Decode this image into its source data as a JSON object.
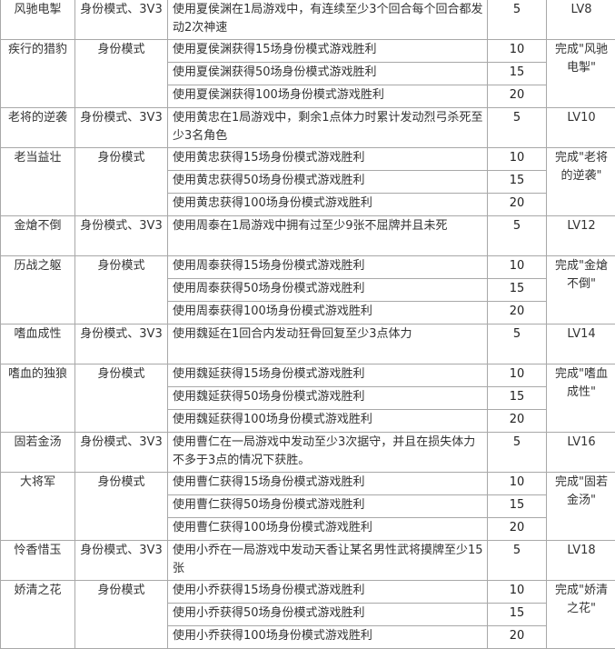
{
  "achievements": [
    {
      "name": "风驰电掣",
      "mode": "身份模式、3V3",
      "tasks": [
        {
          "text": "使用夏侯渊在1局游戏中，有连续至少3个回合每个回合都发动2次神速",
          "points": "5"
        }
      ],
      "requirement": "LV8"
    },
    {
      "name": "疾行的猎豹",
      "mode": "身份模式",
      "tasks": [
        {
          "text": "使用夏侯渊获得15场身份模式游戏胜利",
          "points": "10"
        },
        {
          "text": "使用夏侯渊获得50场身份模式游戏胜利",
          "points": "15"
        },
        {
          "text": "使用夏侯渊获得100场身份模式游戏胜利",
          "points": "20"
        }
      ],
      "requirement": "完成\"风驰电掣\""
    },
    {
      "name": "老将的逆袭",
      "mode": "身份模式、3V3",
      "tasks": [
        {
          "text": "使用黄忠在1局游戏中，剩余1点体力时累计发动烈弓杀死至少3名角色",
          "points": "5"
        }
      ],
      "requirement": "LV10"
    },
    {
      "name": "老当益壮",
      "mode": "身份模式",
      "tasks": [
        {
          "text": "使用黄忠获得15场身份模式游戏胜利",
          "points": "10"
        },
        {
          "text": "使用黄忠获得50场身份模式游戏胜利",
          "points": "15"
        },
        {
          "text": "使用黄忠获得100场身份模式游戏胜利",
          "points": "20"
        }
      ],
      "requirement": "完成\"老将的逆袭\""
    },
    {
      "name": "金熗不倒",
      "mode": "身份模式、3V3",
      "tasks": [
        {
          "text": "使用周泰在1局游戏中拥有过至少9张不屈牌并且未死",
          "points": "5"
        }
      ],
      "requirement": "LV12"
    },
    {
      "name": "历战之躯",
      "mode": "身份模式",
      "tasks": [
        {
          "text": "使用周泰获得15场身份模式游戏胜利",
          "points": "10"
        },
        {
          "text": "使用周泰获得50场身份模式游戏胜利",
          "points": "15"
        },
        {
          "text": "使用周泰获得100场身份模式游戏胜利",
          "points": "20"
        }
      ],
      "requirement": "完成\"金熗不倒\""
    },
    {
      "name": "嗜血成性",
      "mode": "身份模式、3V3",
      "tasks": [
        {
          "text": "使用魏延在1回合内发动狂骨回复至少3点体力",
          "points": "5"
        }
      ],
      "requirement": "LV14"
    },
    {
      "name": "嗜血的独狼",
      "mode": "身份模式",
      "tasks": [
        {
          "text": "使用魏延获得15场身份模式游戏胜利",
          "points": "10"
        },
        {
          "text": "使用魏延获得50场身份模式游戏胜利",
          "points": "15"
        },
        {
          "text": "使用魏延获得100场身份模式游戏胜利",
          "points": "20"
        }
      ],
      "requirement": "完成\"嗜血成性\""
    },
    {
      "name": "固若金汤",
      "mode": "身份模式、3V3",
      "tasks": [
        {
          "text": "使用曹仁在一局游戏中发动至少3次据守，并且在损失体力不多于3点的情况下获胜。",
          "points": "5"
        }
      ],
      "requirement": "LV16"
    },
    {
      "name": "大将军",
      "mode": "身份模式",
      "tasks": [
        {
          "text": "使用曹仁获得15场身份模式游戏胜利",
          "points": "10"
        },
        {
          "text": "使用曹仁获得50场身份模式游戏胜利",
          "points": "15"
        },
        {
          "text": "使用曹仁获得100场身份模式游戏胜利",
          "points": "20"
        }
      ],
      "requirement": "完成\"固若金汤\""
    },
    {
      "name": "怜香惜玉",
      "mode": "身份模式、3V3",
      "tasks": [
        {
          "text": "使用小乔在一局游戏中发动天香让某名男性武将摸牌至少15张",
          "points": "5"
        }
      ],
      "requirement": "LV18"
    },
    {
      "name": "娇清之花",
      "mode": "身份模式",
      "tasks": [
        {
          "text": "使用小乔获得15场身份模式游戏胜利",
          "points": "10"
        },
        {
          "text": "使用小乔获得50场身份模式游戏胜利",
          "points": "15"
        },
        {
          "text": "使用小乔获得100场身份模式游戏胜利",
          "points": "20"
        }
      ],
      "requirement": "完成\"娇清之花\""
    }
  ]
}
